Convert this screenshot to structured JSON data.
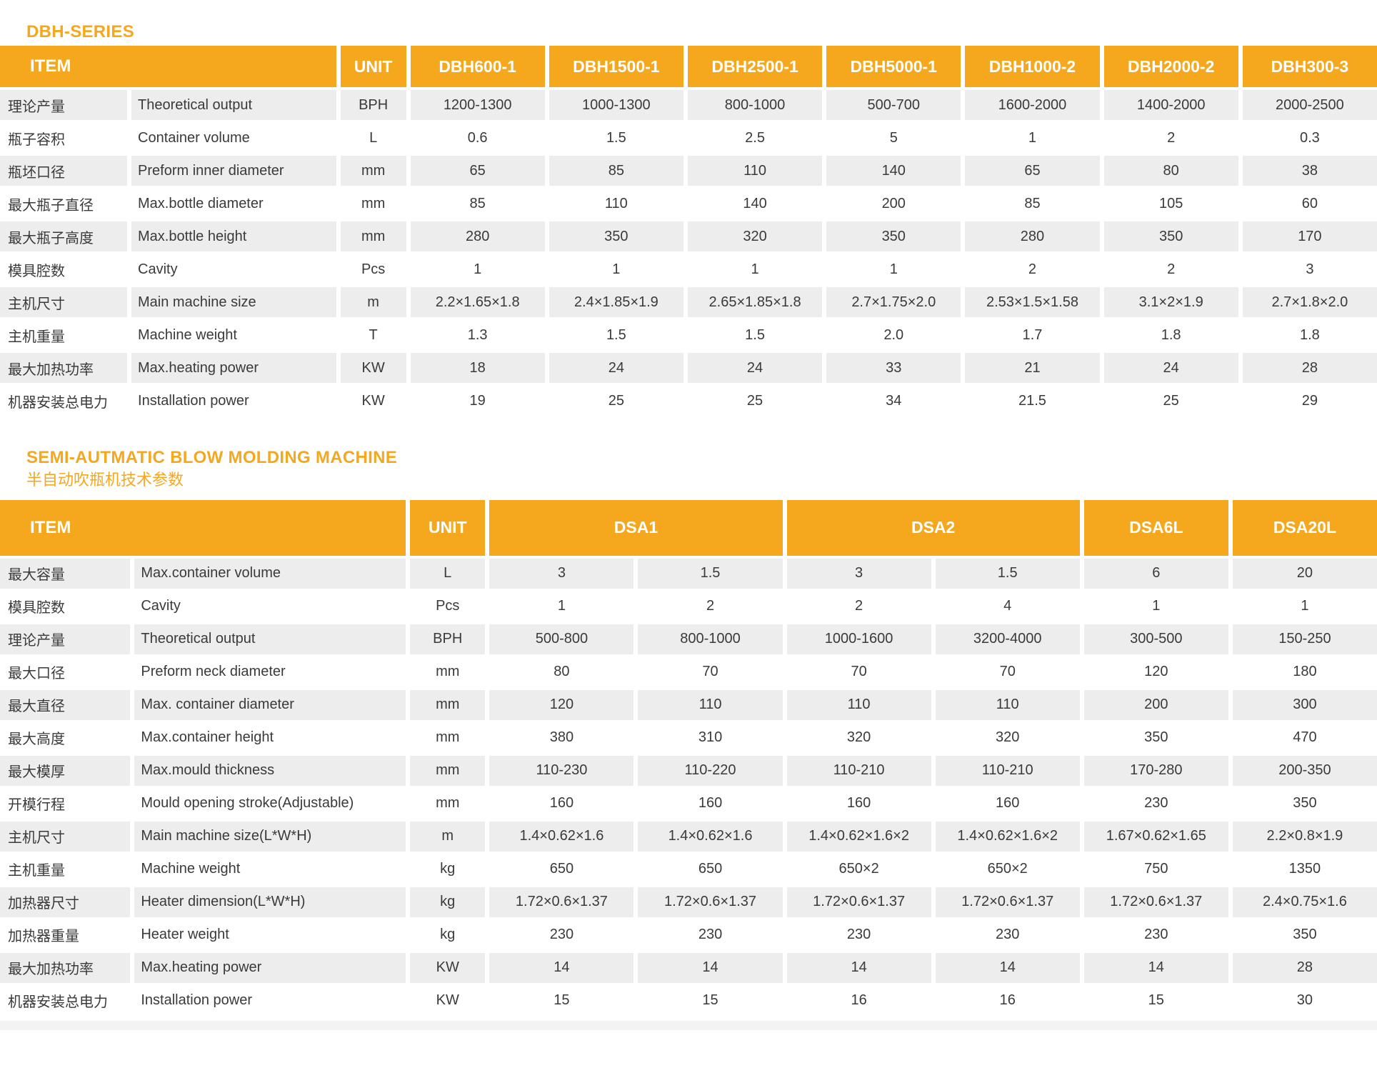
{
  "colors": {
    "accent": "#F5A81E",
    "stripe": "#EDEDED"
  },
  "table1": {
    "title": "DBH-SERIES",
    "item_header": "ITEM",
    "unit_header": "UNIT",
    "models": [
      {
        "label": "DBH600-1",
        "span": 1
      },
      {
        "label": "DBH1500-1",
        "span": 1
      },
      {
        "label": "DBH2500-1",
        "span": 1
      },
      {
        "label": "DBH5000-1",
        "span": 1
      },
      {
        "label": "DBH1000-2",
        "span": 1
      },
      {
        "label": "DBH2000-2",
        "span": 1
      },
      {
        "label": "DBH300-3",
        "span": 1
      }
    ],
    "rows": [
      {
        "cn": "理论产量",
        "en": "Theoretical output",
        "unit": "BPH",
        "values": [
          "1200-1300",
          "1000-1300",
          "800-1000",
          "500-700",
          "1600-2000",
          "1400-2000",
          "2000-2500"
        ]
      },
      {
        "cn": "瓶子容积",
        "en": "Container volume",
        "unit": "L",
        "values": [
          "0.6",
          "1.5",
          "2.5",
          "5",
          "1",
          "2",
          "0.3"
        ]
      },
      {
        "cn": "瓶坯口径",
        "en": "Preform inner diameter",
        "unit": "mm",
        "values": [
          "65",
          "85",
          "110",
          "140",
          "65",
          "80",
          "38"
        ]
      },
      {
        "cn": "最大瓶子直径",
        "en": "Max.bottle diameter",
        "unit": "mm",
        "values": [
          "85",
          "110",
          "140",
          "200",
          "85",
          "105",
          "60"
        ]
      },
      {
        "cn": "最大瓶子高度",
        "en": "Max.bottle height",
        "unit": "mm",
        "values": [
          "280",
          "350",
          "320",
          "350",
          "280",
          "350",
          "170"
        ]
      },
      {
        "cn": "模具腔数",
        "en": "Cavity",
        "unit": "Pcs",
        "values": [
          "1",
          "1",
          "1",
          "1",
          "2",
          "2",
          "3"
        ]
      },
      {
        "cn": "主机尺寸",
        "en": "Main machine size",
        "unit": "m",
        "values": [
          "2.2×1.65×1.8",
          "2.4×1.85×1.9",
          "2.65×1.85×1.8",
          "2.7×1.75×2.0",
          "2.53×1.5×1.58",
          "3.1×2×1.9",
          "2.7×1.8×2.0"
        ]
      },
      {
        "cn": "主机重量",
        "en": "Machine weight",
        "unit": "T",
        "values": [
          "1.3",
          "1.5",
          "1.5",
          "2.0",
          "1.7",
          "1.8",
          "1.8"
        ]
      },
      {
        "cn": "最大加热功率",
        "en": "Max.heating power",
        "unit": "KW",
        "values": [
          "18",
          "24",
          "24",
          "33",
          "21",
          "24",
          "28"
        ]
      },
      {
        "cn": "机器安装总电力",
        "en": "Installation power",
        "unit": "KW",
        "values": [
          "19",
          "25",
          "25",
          "34",
          "21.5",
          "25",
          "29"
        ]
      }
    ]
  },
  "table2": {
    "title": "SEMI-AUTMATIC BLOW MOLDING MACHINE",
    "subtitle": "半自动吹瓶机技术参数",
    "item_header": "ITEM",
    "unit_header": "UNIT",
    "models": [
      {
        "label": "DSA1",
        "span": 2
      },
      {
        "label": "DSA2",
        "span": 2
      },
      {
        "label": "DSA6L",
        "span": 1
      },
      {
        "label": "DSA20L",
        "span": 1
      }
    ],
    "rows": [
      {
        "cn": "最大容量",
        "en": "Max.container volume",
        "unit": "L",
        "values": [
          "3",
          "1.5",
          "3",
          "1.5",
          "6",
          "20"
        ]
      },
      {
        "cn": "模具腔数",
        "en": "Cavity",
        "unit": "Pcs",
        "values": [
          "1",
          "2",
          "2",
          "4",
          "1",
          "1"
        ]
      },
      {
        "cn": "理论产量",
        "en": "Theoretical output",
        "unit": "BPH",
        "values": [
          "500-800",
          "800-1000",
          "1000-1600",
          "3200-4000",
          "300-500",
          "150-250"
        ]
      },
      {
        "cn": "最大口径",
        "en": "Preform neck diameter",
        "unit": "mm",
        "values": [
          "80",
          "70",
          "70",
          "70",
          "120",
          "180"
        ]
      },
      {
        "cn": "最大直径",
        "en": "Max. container diameter",
        "unit": "mm",
        "values": [
          "120",
          "110",
          "110",
          "110",
          "200",
          "300"
        ]
      },
      {
        "cn": "最大高度",
        "en": "Max.container height",
        "unit": "mm",
        "values": [
          "380",
          "310",
          "320",
          "320",
          "350",
          "470"
        ]
      },
      {
        "cn": "最大模厚",
        "en": "Max.mould thickness",
        "unit": "mm",
        "values": [
          "110-230",
          "110-220",
          "110-210",
          "110-210",
          "170-280",
          "200-350"
        ]
      },
      {
        "cn": "开模行程",
        "en": "Mould opening stroke(Adjustable)",
        "unit": "mm",
        "values": [
          "160",
          "160",
          "160",
          "160",
          "230",
          "350"
        ]
      },
      {
        "cn": "主机尺寸",
        "en": "Main machine size(L*W*H)",
        "unit": "m",
        "values": [
          "1.4×0.62×1.6",
          "1.4×0.62×1.6",
          "1.4×0.62×1.6×2",
          "1.4×0.62×1.6×2",
          "1.67×0.62×1.65",
          "2.2×0.8×1.9"
        ]
      },
      {
        "cn": "主机重量",
        "en": "Machine weight",
        "unit": "kg",
        "values": [
          "650",
          "650",
          "650×2",
          "650×2",
          "750",
          "1350"
        ]
      },
      {
        "cn": "加热器尺寸",
        "en": "Heater dimension(L*W*H)",
        "unit": "kg",
        "values": [
          "1.72×0.6×1.37",
          "1.72×0.6×1.37",
          "1.72×0.6×1.37",
          "1.72×0.6×1.37",
          "1.72×0.6×1.37",
          "2.4×0.75×1.6"
        ]
      },
      {
        "cn": "加热器重量",
        "en": "Heater weight",
        "unit": "kg",
        "values": [
          "230",
          "230",
          "230",
          "230",
          "230",
          "350"
        ]
      },
      {
        "cn": "最大加热功率",
        "en": "Max.heating power",
        "unit": "KW",
        "values": [
          "14",
          "14",
          "14",
          "14",
          "14",
          "28"
        ]
      },
      {
        "cn": "机器安装总电力",
        "en": "Installation power",
        "unit": "KW",
        "values": [
          "15",
          "15",
          "16",
          "16",
          "15",
          "30"
        ]
      }
    ]
  }
}
